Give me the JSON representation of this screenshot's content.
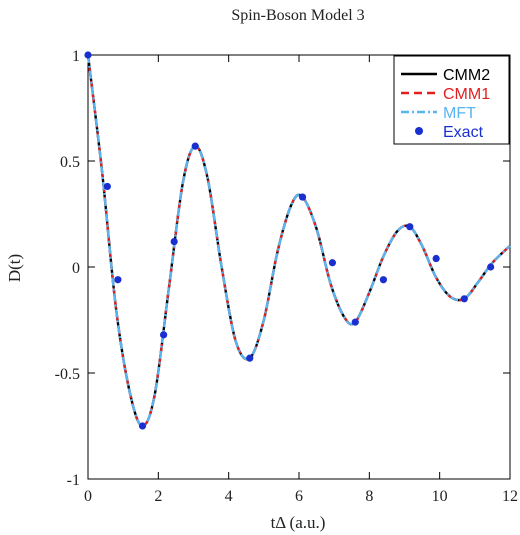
{
  "chart_data": {
    "type": "line",
    "title": "Spin-Boson Model 3",
    "xlabel": "tΔ (a.u.)",
    "ylabel": "D(t)",
    "xlim": [
      0,
      12
    ],
    "ylim": [
      -1,
      1
    ],
    "x_ticks": [
      0,
      2,
      4,
      6,
      8,
      10,
      12
    ],
    "y_ticks": [
      1,
      0.5,
      0,
      -0.5,
      -1
    ],
    "x_tick_labels": [
      "0",
      "2",
      "4",
      "6",
      "8",
      "10",
      "12"
    ],
    "y_tick_labels": [
      "1",
      "0.5",
      "0",
      "-0.5",
      "-1"
    ],
    "legend_position": "top-right",
    "series": [
      {
        "name": "CMM2",
        "style": "solid",
        "color": "#000000",
        "x": [
          0,
          0.4,
          0.8,
          1.2,
          1.55,
          1.9,
          2.3,
          2.7,
          3.05,
          3.4,
          3.8,
          4.2,
          4.6,
          5.0,
          5.4,
          5.8,
          6.1,
          6.5,
          6.9,
          7.3,
          7.6,
          8.0,
          8.4,
          8.8,
          9.15,
          9.5,
          9.9,
          10.3,
          10.7,
          11.1,
          11.5,
          12.0
        ],
        "y": [
          1.0,
          0.45,
          -0.2,
          -0.6,
          -0.75,
          -0.6,
          -0.1,
          0.4,
          0.57,
          0.42,
          0.0,
          -0.35,
          -0.43,
          -0.25,
          0.08,
          0.3,
          0.33,
          0.18,
          -0.08,
          -0.24,
          -0.26,
          -0.12,
          0.05,
          0.17,
          0.19,
          0.1,
          -0.05,
          -0.14,
          -0.15,
          -0.07,
          0.02,
          0.1
        ]
      },
      {
        "name": "CMM1",
        "style": "dashed",
        "color": "#e02020",
        "x": [
          0,
          0.4,
          0.8,
          1.2,
          1.55,
          1.9,
          2.3,
          2.7,
          3.05,
          3.4,
          3.8,
          4.2,
          4.6,
          5.0,
          5.4,
          5.8,
          6.1,
          6.5,
          6.9,
          7.3,
          7.6,
          8.0,
          8.4,
          8.8,
          9.15,
          9.5,
          9.9,
          10.3,
          10.7,
          11.1,
          11.5,
          12.0
        ],
        "y": [
          1.0,
          0.45,
          -0.2,
          -0.6,
          -0.75,
          -0.6,
          -0.1,
          0.4,
          0.57,
          0.42,
          0.0,
          -0.35,
          -0.43,
          -0.25,
          0.08,
          0.3,
          0.33,
          0.18,
          -0.08,
          -0.24,
          -0.26,
          -0.12,
          0.05,
          0.17,
          0.19,
          0.1,
          -0.05,
          -0.14,
          -0.15,
          -0.07,
          0.02,
          0.1
        ]
      },
      {
        "name": "MFT",
        "style": "dashdot",
        "color": "#5ab4f0",
        "x": [
          0,
          0.4,
          0.8,
          1.2,
          1.55,
          1.9,
          2.3,
          2.7,
          3.05,
          3.4,
          3.8,
          4.2,
          4.6,
          5.0,
          5.4,
          5.8,
          6.1,
          6.5,
          6.9,
          7.3,
          7.6,
          8.0,
          8.4,
          8.8,
          9.15,
          9.5,
          9.9,
          10.3,
          10.7,
          11.1,
          11.5,
          12.0
        ],
        "y": [
          1.0,
          0.45,
          -0.2,
          -0.6,
          -0.75,
          -0.6,
          -0.1,
          0.4,
          0.57,
          0.42,
          0.0,
          -0.35,
          -0.43,
          -0.25,
          0.08,
          0.3,
          0.33,
          0.18,
          -0.08,
          -0.24,
          -0.26,
          -0.12,
          0.05,
          0.17,
          0.19,
          0.1,
          -0.05,
          -0.14,
          -0.15,
          -0.07,
          0.02,
          0.1
        ]
      },
      {
        "name": "Exact",
        "style": "markers",
        "color": "#1a2fd0",
        "x": [
          0.0,
          0.55,
          0.85,
          1.55,
          2.15,
          2.45,
          3.05,
          4.6,
          6.1,
          6.95,
          7.6,
          8.4,
          9.15,
          9.9,
          10.7,
          11.45
        ],
        "y": [
          1.0,
          0.38,
          -0.06,
          -0.75,
          -0.32,
          0.12,
          0.57,
          -0.43,
          0.33,
          0.02,
          -0.26,
          -0.06,
          0.19,
          0.04,
          -0.15,
          0.0
        ]
      }
    ]
  }
}
